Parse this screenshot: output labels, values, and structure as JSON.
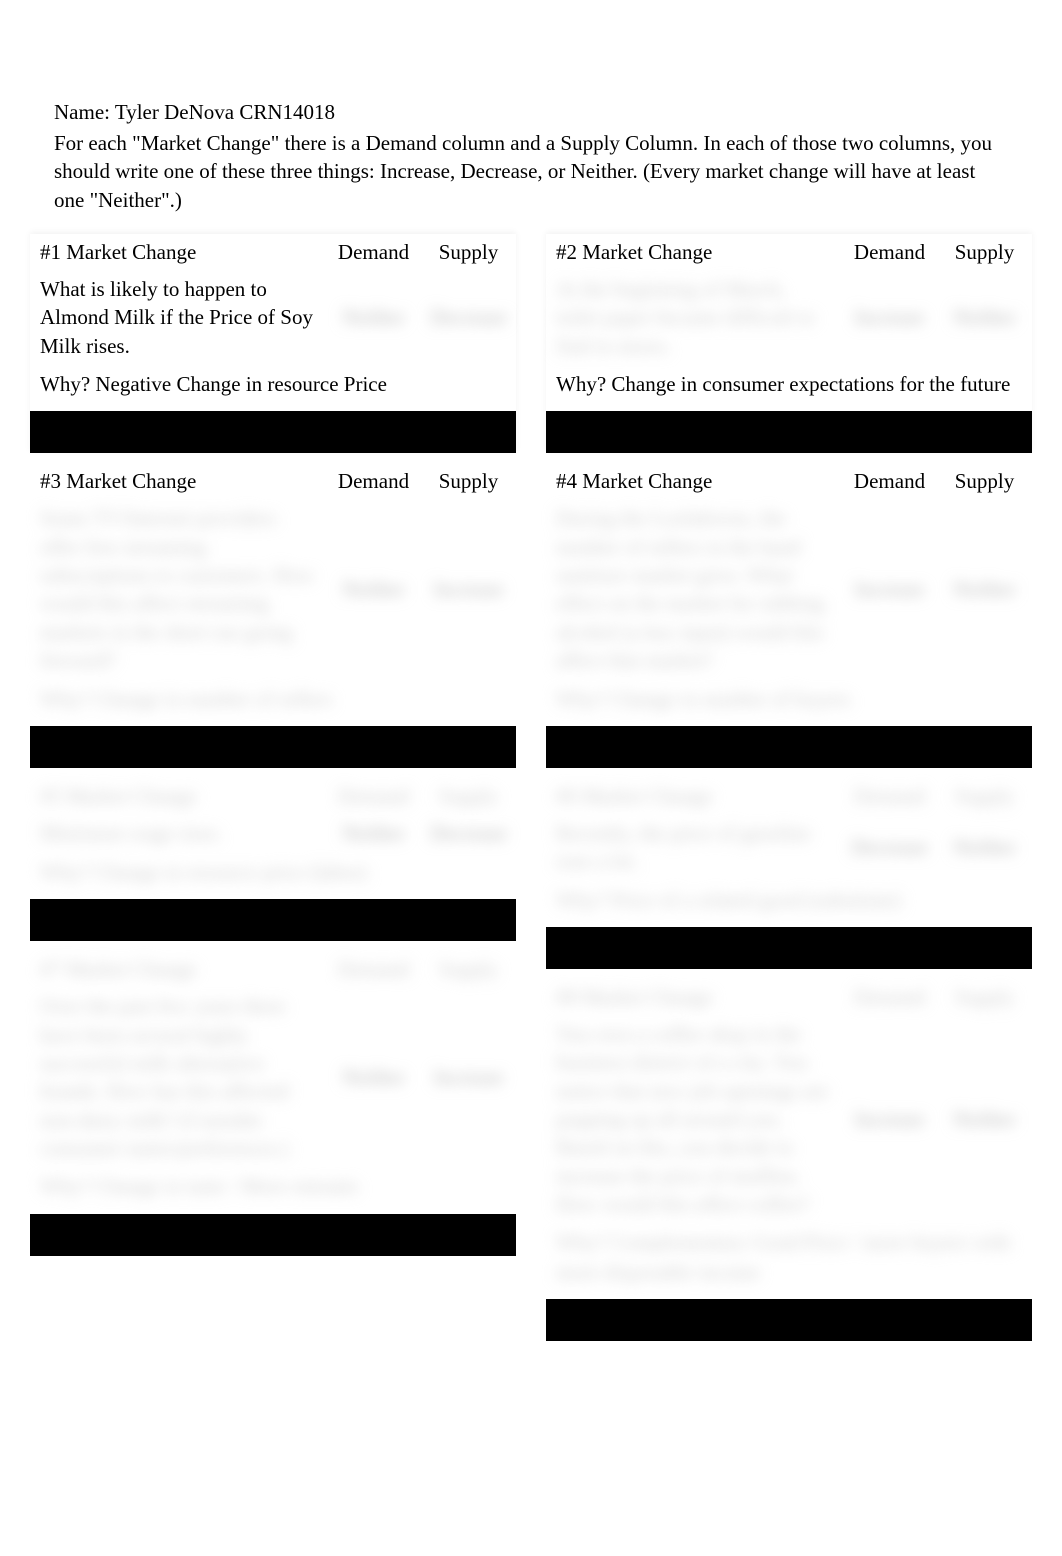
{
  "header": {
    "name_line": "Name: Tyler DeNova CRN14018",
    "instructions": "For each \"Market Change\" there is a Demand column and a Supply Column.  In each of those two columns, you should write one of these three things: Increase, Decrease, or Neither.    (Every market change will have at least one \"Neither\".)"
  },
  "labels": {
    "demand": "Demand",
    "supply": "Supply",
    "why_prefix": "Why?"
  },
  "left": [
    {
      "num": "#1 Market Change",
      "change": "What is likely to happen to Almond Milk if the Price of Soy Milk rises.",
      "demand": "Neither",
      "supply": "Decrease",
      "why": "Why?  Negative Change in resource Price"
    },
    {
      "num": "#3 Market Change",
      "change": "Some TV/Internet providers offer free streaming subscriptions to customers. How would this affect streaming markets in the short run going forward?",
      "demand": "Neither",
      "supply": "Increase",
      "why": "Why? Change in number of sellers"
    },
    {
      "num": "#5 Market Change",
      "change": "Minimum wage rises.",
      "demand": "Neither",
      "supply": "Decrease",
      "why": "Why? Change in resource price (labor)"
    },
    {
      "num": "#7 Market Change",
      "change": "Over the past few years there have been several highly successful milk alternative brands. How has this affected non-dairy milk? (Consider consumer tastes/preferences.)",
      "demand": "Neither",
      "supply": "Increase",
      "why": "Why? Change in taste / More entrants"
    }
  ],
  "right": [
    {
      "num": "#2 Market Change",
      "change": "At the beginning of March, toilet paper became difficult to find in stores.",
      "demand": "Increase",
      "supply": "Neither",
      "why": "Why? Change in consumer expectations for the future"
    },
    {
      "num": "#4 Market Change",
      "change": "During the Lockdowns, the number of sellers in the hand sanitizer market grew. What effect on the market for rubbing alcohol (a key input) would this affect that market?",
      "demand": "Increase",
      "supply": "Neither",
      "why": "Why? Change in number of buyers"
    },
    {
      "num": "#6 Market Change",
      "change": "Recently, the price of gasoline rose a lot.",
      "demand": "Decrease",
      "supply": "Neither",
      "why": "Why? Price of a related good (substitute)"
    },
    {
      "num": "#8 Market Change",
      "change": "You own a coffee shop in the business district of a city. You notice that new job openings are popping up all around you. Based on this, you decide to increase the price of muffins. How would this affect coffee?",
      "demand": "Increase",
      "supply": "Neither",
      "why": "Why? Complementary Good Price / more buyers with more disposable income"
    }
  ]
}
